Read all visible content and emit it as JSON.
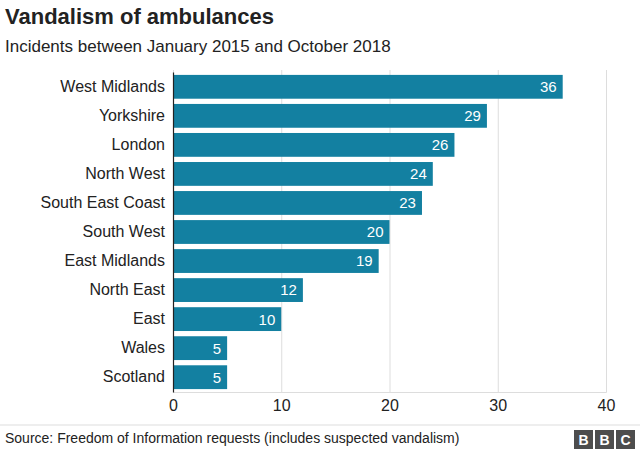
{
  "chart_data": {
    "type": "bar",
    "orientation": "horizontal",
    "title": "Vandalism of ambulances",
    "subtitle": "Incidents between January 2015 and October 2018",
    "categories": [
      "West Midlands",
      "Yorkshire",
      "London",
      "North West",
      "South East Coast",
      "South West",
      "East Midlands",
      "North East",
      "East",
      "Wales",
      "Scotland"
    ],
    "values": [
      36,
      29,
      26,
      24,
      23,
      20,
      19,
      12,
      10,
      5,
      5
    ],
    "color": "#1380a1",
    "xlim": [
      0,
      40
    ],
    "xticks": [
      0,
      10,
      20,
      30,
      40
    ],
    "grid": true,
    "data_labels": true,
    "source": "Source: Freedom of Information requests (includes suspected vandalism)",
    "logo": "BBC"
  }
}
